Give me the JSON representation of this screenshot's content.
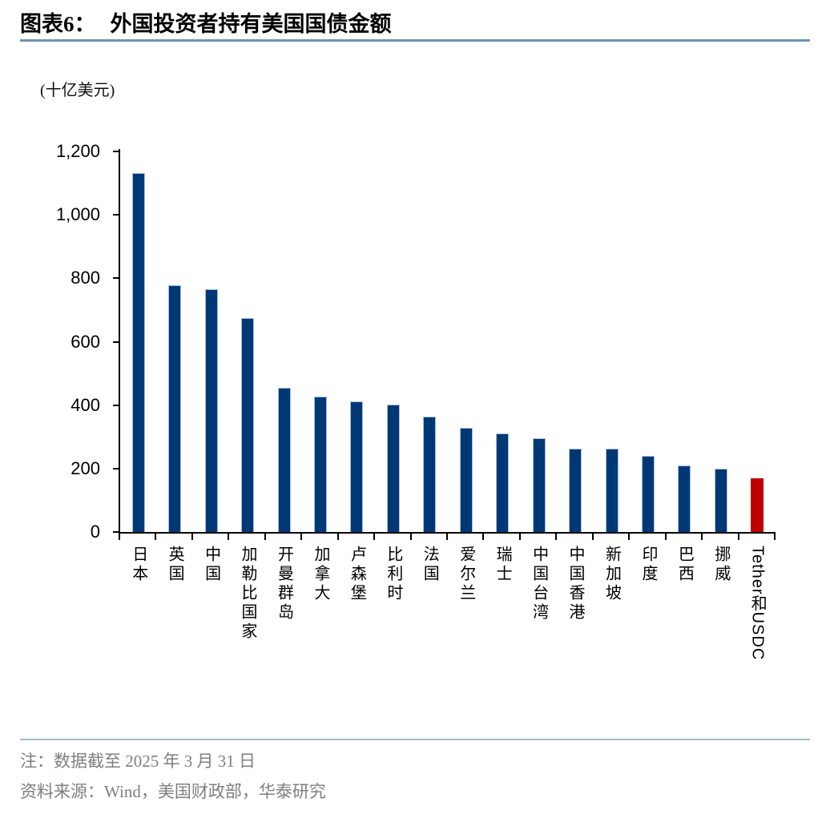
{
  "header": {
    "figure_label": "图表6：",
    "title": "外国投资者持有美国国债金额"
  },
  "chart_data": {
    "type": "bar",
    "title": "外国投资者持有美国国债金额",
    "unit_label": "(十亿美元)",
    "ylabel": "十亿美元",
    "xlabel": "",
    "grid": false,
    "legend": "none",
    "categories": [
      "日本",
      "英国",
      "中国",
      "加勒比国家",
      "开曼群岛",
      "加拿大",
      "卢森堡",
      "比利时",
      "法国",
      "爱尔兰",
      "瑞士",
      "中国台湾",
      "中国香港",
      "新加坡",
      "印度",
      "巴西",
      "挪威",
      "Tether和USDC"
    ],
    "values": [
      1131,
      779,
      765,
      675,
      455,
      426,
      413,
      402,
      364,
      329,
      311,
      295,
      262,
      264,
      240,
      210,
      200,
      170
    ],
    "ylim": [
      0,
      1200
    ],
    "ytick_values": [
      0,
      200,
      400,
      600,
      800,
      1000,
      1200
    ],
    "ytick_labels": [
      "0",
      "200",
      "400",
      "600",
      "800",
      "1,000",
      "1,200"
    ],
    "bar_color": "#003876",
    "highlight_color": "#C00000",
    "highlight_index": 17,
    "bar_border_color": "#A6BEDD"
  },
  "notes": {
    "line1": "注：数据截至 2025 年 3 月 31 日",
    "line2": "资料来源：Wind，美国财政部，华泰研究"
  },
  "accents": {
    "title_rule_color": "#6E92B8",
    "footer_rule_color": "#A3B8CF",
    "note_text_color": "#7F7F7F"
  }
}
